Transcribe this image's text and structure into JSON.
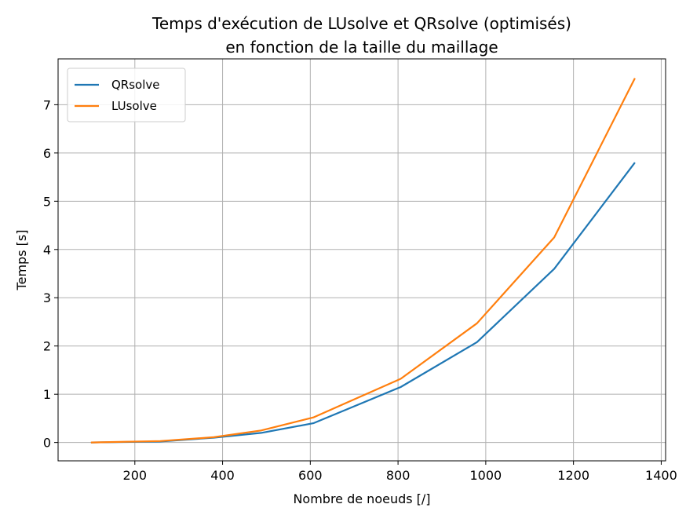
{
  "chart_data": {
    "type": "line",
    "title": [
      "Temps d'exécution de LUsolve et QRsolve (optimisés)",
      "en fonction de la taille du maillage"
    ],
    "xlabel": "Nombre de noeuds [/]",
    "ylabel": "Temps [s]",
    "xlim": [
      25,
      1410
    ],
    "ylim": [
      -0.38,
      7.95
    ],
    "xticks": [
      200,
      400,
      600,
      800,
      1000,
      1200,
      1400
    ],
    "yticks": [
      0,
      1,
      2,
      3,
      4,
      5,
      6,
      7
    ],
    "grid": true,
    "legend": "top-left",
    "x": [
      100,
      258,
      380,
      488,
      607,
      806,
      980,
      1156,
      1340
    ],
    "series": [
      {
        "name": "QRsolve",
        "color": "#1f77b4",
        "values": [
          0.0,
          0.02,
          0.1,
          0.2,
          0.4,
          1.15,
          2.08,
          3.6,
          5.8
        ]
      },
      {
        "name": "LUsolve",
        "color": "#ff7f0e",
        "values": [
          0.0,
          0.03,
          0.11,
          0.25,
          0.52,
          1.32,
          2.47,
          4.25,
          7.55
        ]
      }
    ]
  }
}
